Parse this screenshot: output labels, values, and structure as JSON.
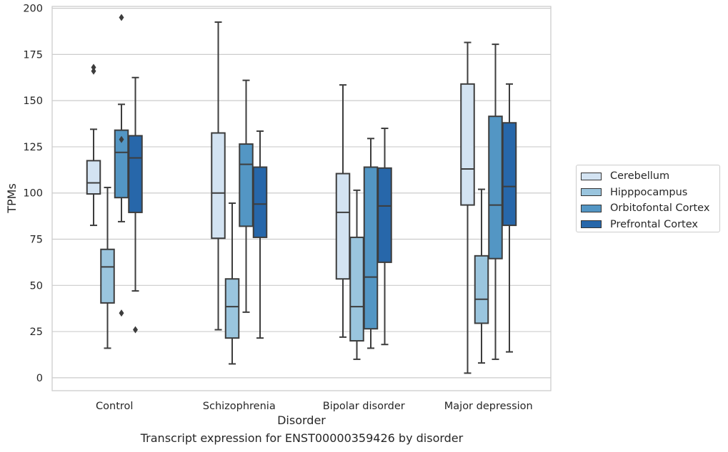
{
  "chart_data": {
    "type": "box",
    "caption": "Transcript expression for ENST00000359426 by disorder",
    "xlabel": "Disorder",
    "ylabel": "TPMs",
    "ylim": [
      -7,
      201
    ],
    "yticks": [
      0,
      25,
      50,
      75,
      100,
      125,
      150,
      175,
      200
    ],
    "grid": true,
    "legend_position": "right",
    "categories": [
      "Control",
      "Schizophrenia",
      "Bipolar disorder",
      "Major depression"
    ],
    "series": [
      {
        "name": "Cerebellum",
        "color": "#d3e3f2",
        "boxes": [
          {
            "whisker_low": 82.5,
            "q1": 99.5,
            "median": 105.5,
            "q3": 117.5,
            "whisker_high": 134.5,
            "outliers": [
              166,
              168
            ]
          },
          {
            "whisker_low": 26,
            "q1": 75.5,
            "median": 100,
            "q3": 132.5,
            "whisker_high": 192.5,
            "outliers": []
          },
          {
            "whisker_low": 22,
            "q1": 53.5,
            "median": 89.5,
            "q3": 110.5,
            "whisker_high": 158.5,
            "outliers": []
          },
          {
            "whisker_low": 2.5,
            "q1": 93.5,
            "median": 113,
            "q3": 159,
            "whisker_high": 181.5,
            "outliers": []
          }
        ]
      },
      {
        "name": "Hipppocampus",
        "color": "#9ac5de",
        "boxes": [
          {
            "whisker_low": 16,
            "q1": 40.5,
            "median": 60,
            "q3": 69.5,
            "whisker_high": 103,
            "outliers": []
          },
          {
            "whisker_low": 7.5,
            "q1": 21.5,
            "median": 38.5,
            "q3": 53.5,
            "whisker_high": 94.5,
            "outliers": []
          },
          {
            "whisker_low": 10,
            "q1": 20,
            "median": 38.5,
            "q3": 76,
            "whisker_high": 101.5,
            "outliers": []
          },
          {
            "whisker_low": 8,
            "q1": 29.5,
            "median": 42.5,
            "q3": 66,
            "whisker_high": 102,
            "outliers": []
          }
        ]
      },
      {
        "name": "Orbitofontal Cortex",
        "color": "#5396c4",
        "boxes": [
          {
            "whisker_low": 84.5,
            "q1": 97.5,
            "median": 122,
            "q3": 134,
            "whisker_high": 148,
            "outliers": [
              35,
              129,
              195
            ]
          },
          {
            "whisker_low": 35.5,
            "q1": 82,
            "median": 115.5,
            "q3": 126.5,
            "whisker_high": 161,
            "outliers": []
          },
          {
            "whisker_low": 16,
            "q1": 26.5,
            "median": 54.5,
            "q3": 114,
            "whisker_high": 129.5,
            "outliers": []
          },
          {
            "whisker_low": 10,
            "q1": 64.5,
            "median": 93.5,
            "q3": 141.5,
            "whisker_high": 180.5,
            "outliers": []
          }
        ]
      },
      {
        "name": "Prefrontal Cortex",
        "color": "#2767aa",
        "boxes": [
          {
            "whisker_low": 47,
            "q1": 89.5,
            "median": 119,
            "q3": 131,
            "whisker_high": 162.5,
            "outliers": [
              26
            ]
          },
          {
            "whisker_low": 21.5,
            "q1": 76,
            "median": 94,
            "q3": 114,
            "whisker_high": 133.5,
            "outliers": []
          },
          {
            "whisker_low": 18,
            "q1": 62.5,
            "median": 93,
            "q3": 113.5,
            "whisker_high": 135,
            "outliers": []
          },
          {
            "whisker_low": 14,
            "q1": 82.5,
            "median": 103.5,
            "q3": 138,
            "whisker_high": 159,
            "outliers": []
          }
        ]
      }
    ]
  }
}
